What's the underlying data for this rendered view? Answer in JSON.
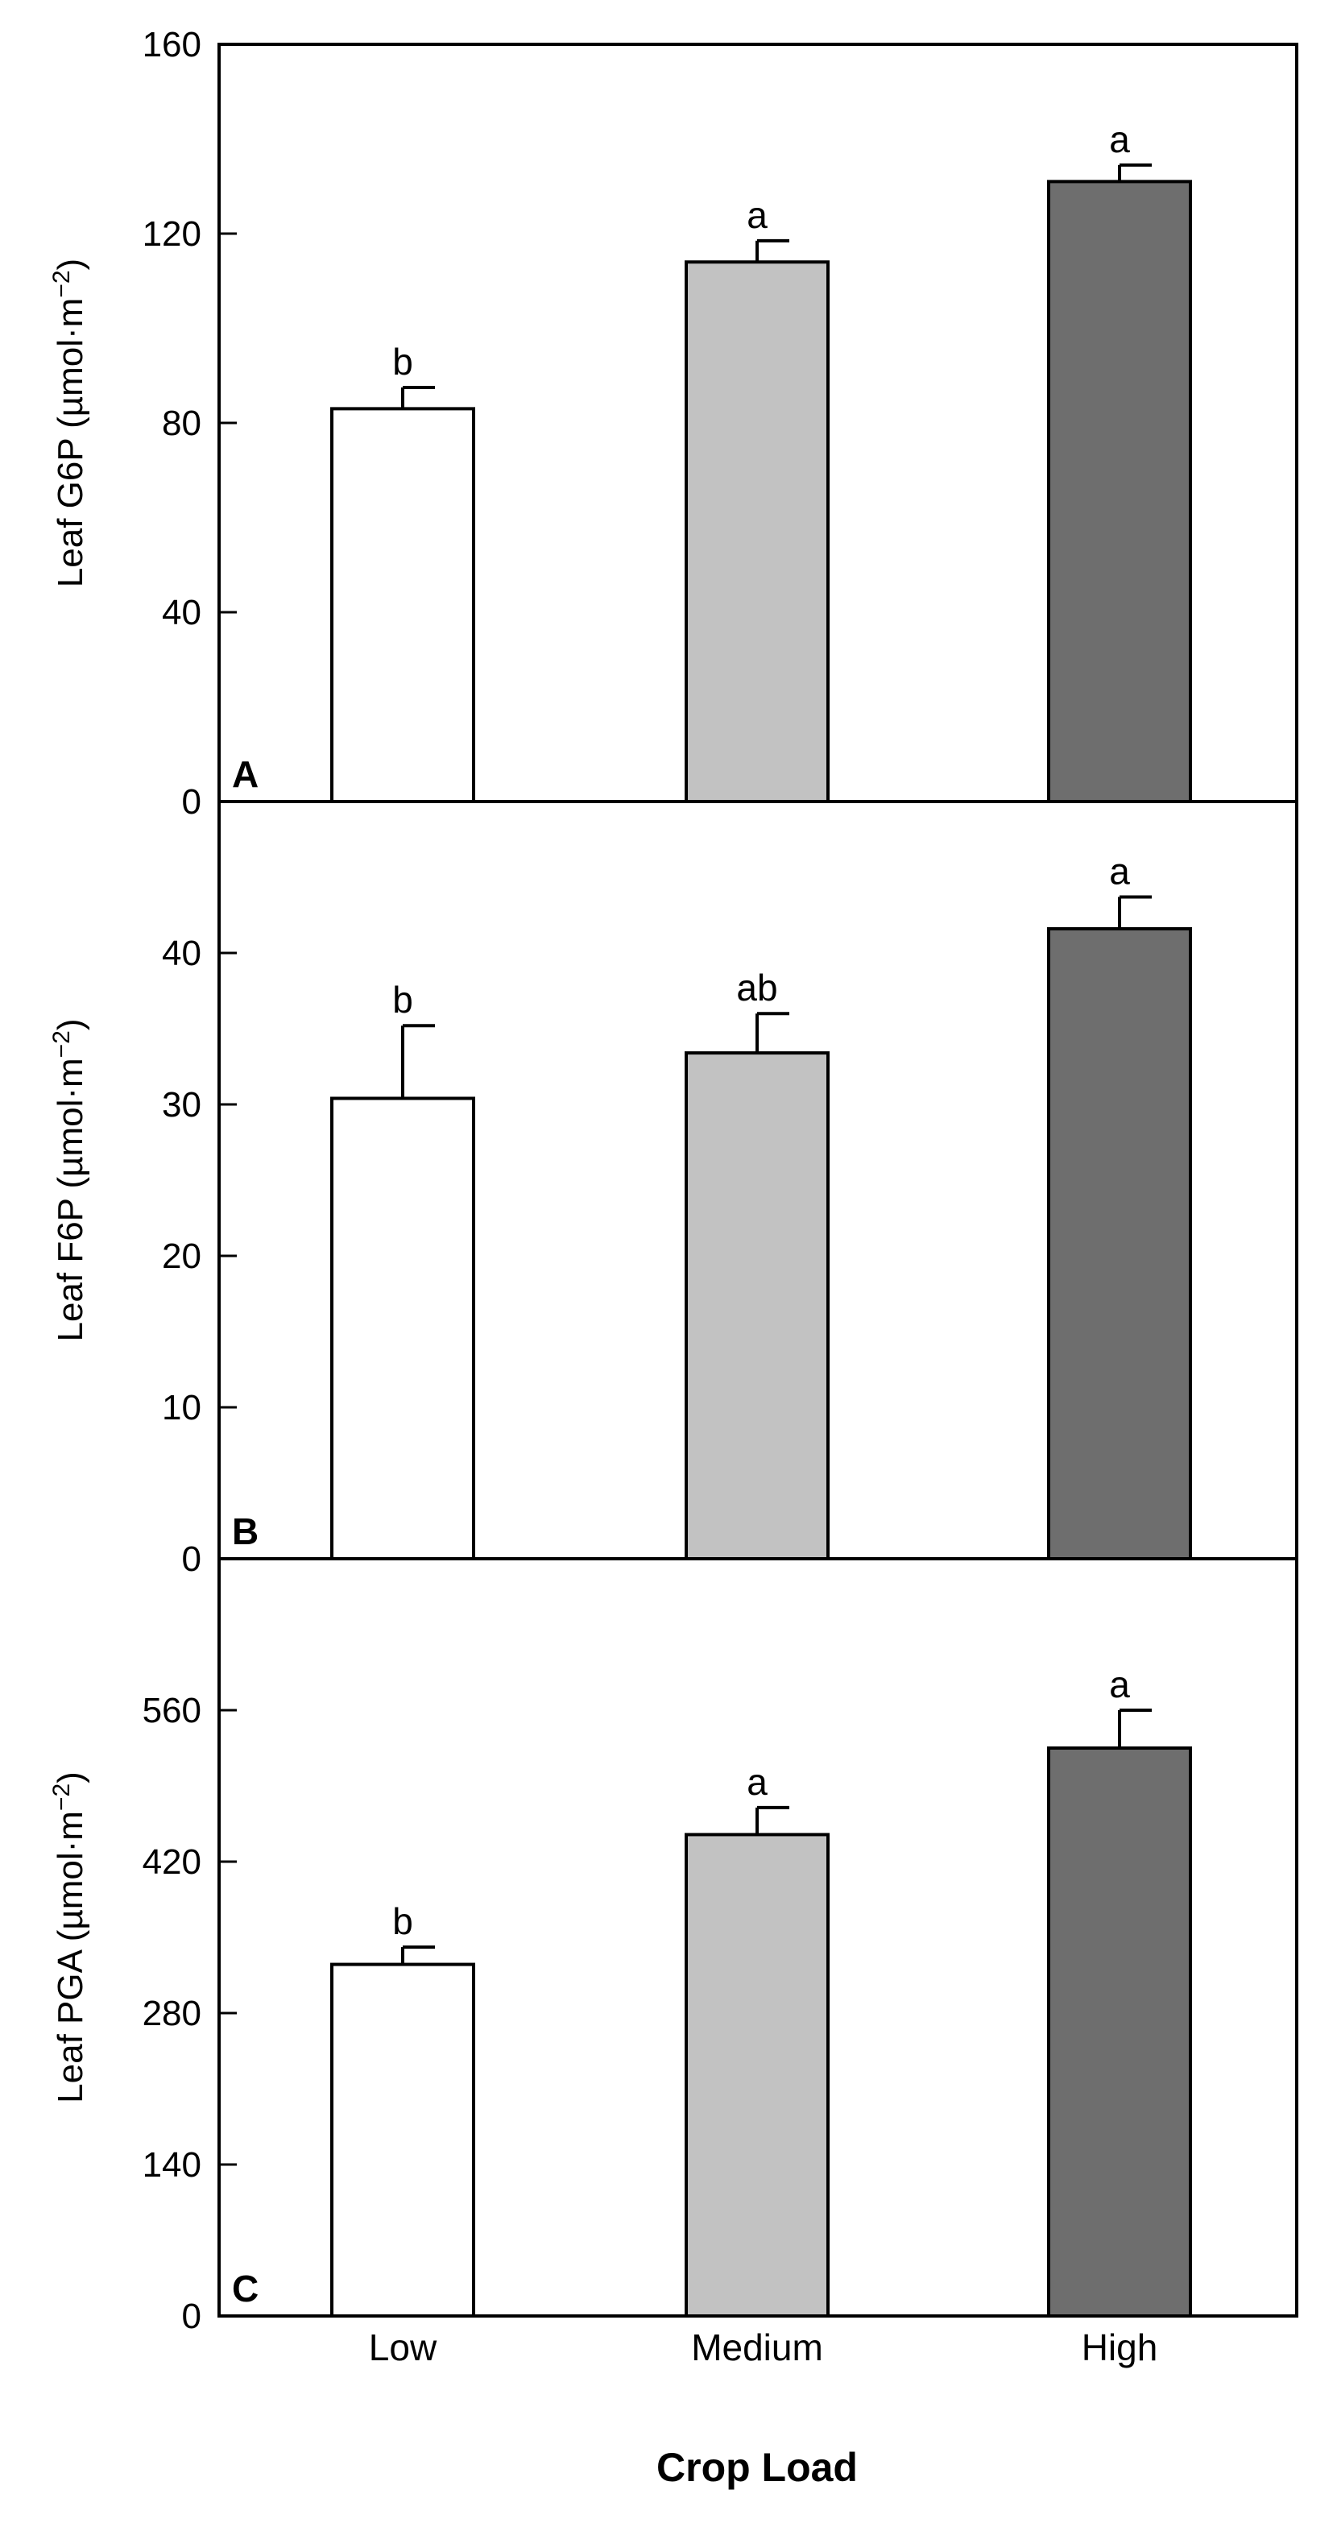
{
  "chart_data": [
    {
      "type": "bar",
      "panel": "A",
      "ylabel_main": "Leaf G6P (µmol·m",
      "ylabel_sup": "−2",
      "ylabel_close": ")",
      "ylim": [
        0,
        160
      ],
      "yticks": [
        "0",
        "40",
        "80",
        "120",
        "160"
      ],
      "categories": [
        "Low",
        "Medium",
        "High"
      ],
      "values": [
        83,
        114,
        131
      ],
      "errors": [
        4.5,
        4.5,
        3.5
      ],
      "letters": [
        "b",
        "a",
        "a"
      ],
      "colors": [
        "#ffffff",
        "#c2c2c2",
        "#6e6e6e"
      ]
    },
    {
      "type": "bar",
      "panel": "B",
      "ylabel_main": "Leaf F6P (µmol·m",
      "ylabel_sup": "−2",
      "ylabel_close": ")",
      "ylim": [
        0,
        50
      ],
      "yticks": [
        "0",
        "10",
        "20",
        "30",
        "40"
      ],
      "categories": [
        "Low",
        "Medium",
        "High"
      ],
      "values": [
        30.4,
        33.4,
        41.6
      ],
      "errors": [
        4.8,
        2.6,
        2.1
      ],
      "letters": [
        "b",
        "ab",
        "a"
      ],
      "colors": [
        "#ffffff",
        "#c2c2c2",
        "#6e6e6e"
      ]
    },
    {
      "type": "bar",
      "panel": "C",
      "ylabel_main": "Leaf PGA (µmol·m",
      "ylabel_sup": "−2",
      "ylabel_close": ")",
      "ylim": [
        0,
        700
      ],
      "yticks": [
        "0",
        "140",
        "280",
        "420",
        "560"
      ],
      "categories": [
        "Low",
        "Medium",
        "High"
      ],
      "values": [
        325,
        445,
        525
      ],
      "errors": [
        16,
        25,
        35
      ],
      "letters": [
        "b",
        "a",
        "a"
      ],
      "colors": [
        "#ffffff",
        "#c2c2c2",
        "#6e6e6e"
      ]
    }
  ],
  "x_axis": {
    "categories": [
      "Low",
      "Medium",
      "High"
    ],
    "xlabel": "Crop Load"
  }
}
